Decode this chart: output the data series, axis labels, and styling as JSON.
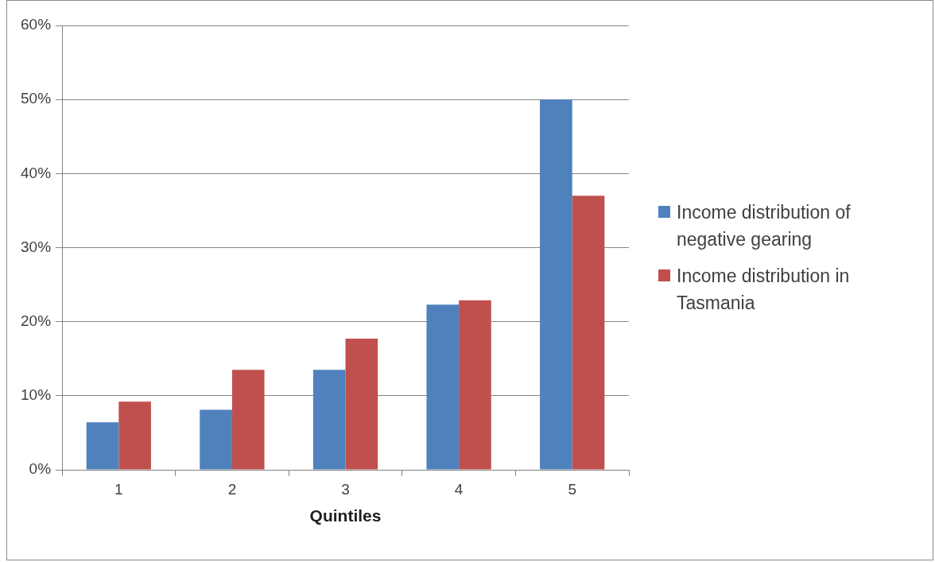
{
  "chart_data": {
    "type": "bar",
    "xlabel": "Quintiles",
    "categories": [
      "1",
      "2",
      "3",
      "4",
      "5"
    ],
    "series": [
      {
        "name": "Income distribution of negative gearing",
        "color": "#4f81bd",
        "values": [
          6.4,
          8.1,
          13.5,
          22.3,
          50.0
        ]
      },
      {
        "name": "Income distribution in Tasmania",
        "color": "#c0504d",
        "values": [
          9.2,
          13.5,
          17.7,
          22.9,
          37.0
        ]
      }
    ],
    "ylim": [
      0,
      60
    ],
    "yticks": [
      {
        "value": 0,
        "label": "0%"
      },
      {
        "value": 10,
        "label": "10%"
      },
      {
        "value": 20,
        "label": "20%"
      },
      {
        "value": 30,
        "label": "30%"
      },
      {
        "value": 40,
        "label": "40%"
      },
      {
        "value": 50,
        "label": "50%"
      },
      {
        "value": 60,
        "label": "60%"
      }
    ],
    "grid": "y",
    "legend": "right"
  }
}
